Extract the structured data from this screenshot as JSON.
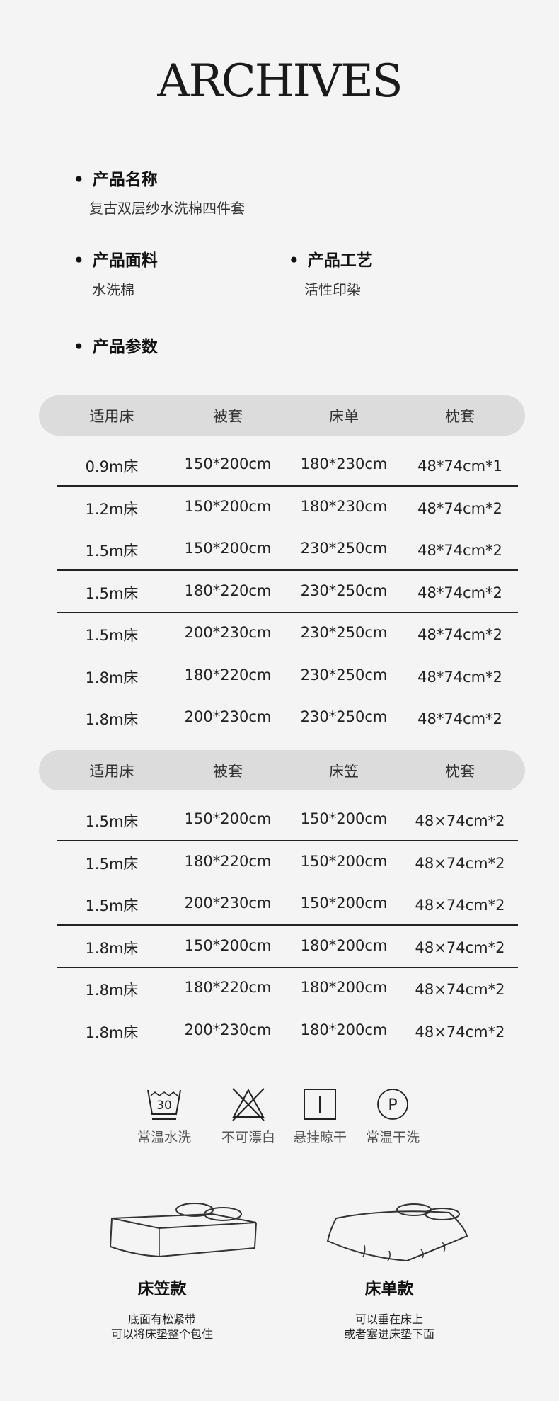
{
  "logo": "ARCHIVES",
  "product_name": {
    "label": "产品名称",
    "value": "复古双层纱水洗棉四件套"
  },
  "fabric": {
    "label": "产品面料",
    "value": "水洗棉"
  },
  "craft": {
    "label": "产品工艺",
    "value": "活性印染"
  },
  "params_label": "产品参数",
  "table1": {
    "headers": [
      "适用床",
      "被套",
      "床单",
      "枕套"
    ],
    "rows": [
      [
        "0.9m床",
        "150*200cm",
        "180*230cm",
        "48*74cm*1"
      ],
      [
        "1.2m床",
        "150*200cm",
        "180*230cm",
        "48*74cm*2"
      ],
      [
        "1.5m床",
        "150*200cm",
        "230*250cm",
        "48*74cm*2"
      ],
      [
        "1.5m床",
        "180*220cm",
        "230*250cm",
        "48*74cm*2"
      ],
      [
        "1.5m床",
        "200*230cm",
        "230*250cm",
        "48*74cm*2"
      ],
      [
        "1.8m床",
        "180*220cm",
        "230*250cm",
        "48*74cm*2"
      ],
      [
        "1.8m床",
        "200*230cm",
        "230*250cm",
        "48*74cm*2"
      ]
    ]
  },
  "table2": {
    "headers": [
      "适用床",
      "被套",
      "床笠",
      "枕套"
    ],
    "rows": [
      [
        "1.5m床",
        "150*200cm",
        "150*200cm",
        "48×74cm*2"
      ],
      [
        "1.5m床",
        "180*220cm",
        "150*200cm",
        "48×74cm*2"
      ],
      [
        "1.5m床",
        "200*230cm",
        "150*200cm",
        "48×74cm*2"
      ],
      [
        "1.8m床",
        "150*200cm",
        "180*200cm",
        "48×74cm*2"
      ],
      [
        "1.8m床",
        "180*220cm",
        "180*200cm",
        "48×74cm*2"
      ],
      [
        "1.8m床",
        "200*230cm",
        "180*200cm",
        "48×74cm*2"
      ]
    ]
  },
  "care": [
    {
      "icon": "wash-30-icon",
      "label": "常温水洗",
      "glyph": "30"
    },
    {
      "icon": "no-bleach-icon",
      "label": "不可漂白"
    },
    {
      "icon": "hang-dry-icon",
      "label": "悬挂晾干"
    },
    {
      "icon": "dry-clean-icon",
      "label": "常温干洗",
      "glyph": "P"
    }
  ],
  "styles": [
    {
      "title": "床笠款",
      "desc": [
        "底面有松紧带",
        "可以将床垫整个包住"
      ]
    },
    {
      "title": "床单款",
      "desc": [
        "可以垂在床上",
        "或者塞进床垫下面"
      ]
    }
  ]
}
